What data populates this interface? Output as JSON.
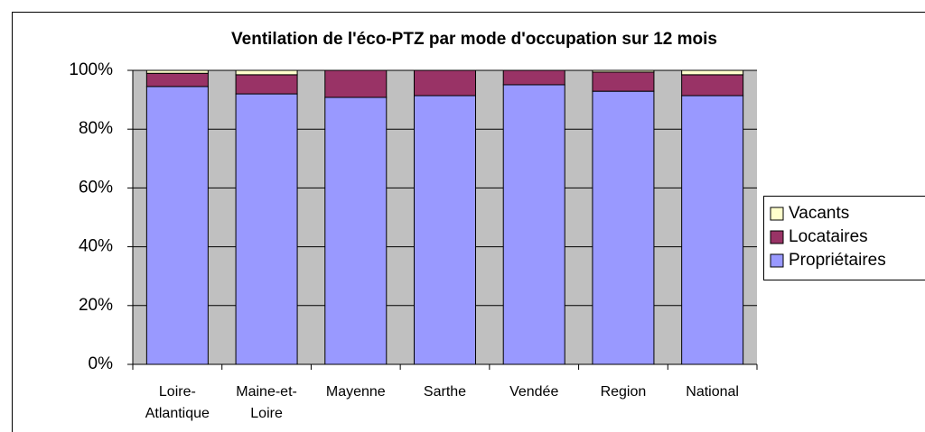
{
  "chart_data": {
    "type": "stacked-bar",
    "title": "Ventilation de l'éco-PTZ par mode d'occupation sur 12 mois",
    "categories": [
      "Loire-Atlantique",
      "Maine-et-Loire",
      "Mayenne",
      "Sarthe",
      "Vendée",
      "Region",
      "National"
    ],
    "series": [
      {
        "name": "Propriétaires",
        "color": "#9999ff",
        "values": [
          94.5,
          92.0,
          90.8,
          91.4,
          95.1,
          92.9,
          91.4
        ]
      },
      {
        "name": "Locataires",
        "color": "#993366",
        "values": [
          4.5,
          6.5,
          9.2,
          8.6,
          4.9,
          6.5,
          7.1
        ]
      },
      {
        "name": "Vacants",
        "color": "#ffffcc",
        "values": [
          1.0,
          1.5,
          0,
          0,
          0,
          0.6,
          1.5
        ]
      }
    ],
    "ylim": [
      0,
      100
    ],
    "yticks": [
      {
        "value": 0,
        "label": "0%"
      },
      {
        "value": 20,
        "label": "20%"
      },
      {
        "value": 40,
        "label": "40%"
      },
      {
        "value": 60,
        "label": "60%"
      },
      {
        "value": 80,
        "label": "80%"
      },
      {
        "value": 100,
        "label": "100%"
      }
    ],
    "grid": true,
    "legend": "right"
  }
}
